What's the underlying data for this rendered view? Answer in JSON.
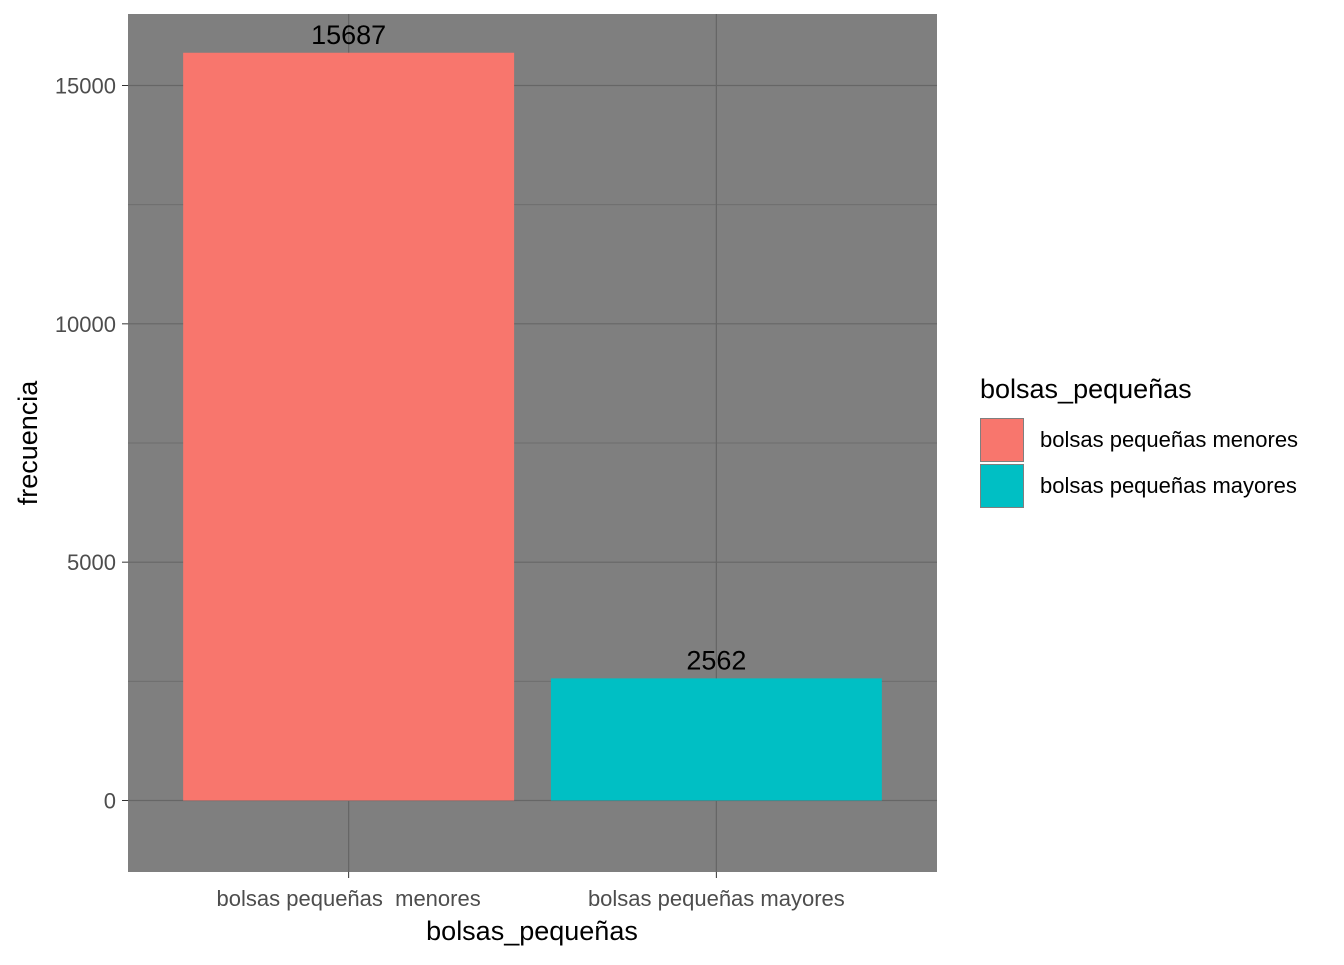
{
  "chart_data": {
    "type": "bar",
    "title": "",
    "xlabel": "bolsas_pequeñas",
    "ylabel": "frecuencia",
    "categories": [
      "bolsas pequeñas  menores",
      "bolsas pequeñas mayores"
    ],
    "values": [
      15687,
      2562
    ],
    "data_labels": [
      "15687",
      "2562"
    ],
    "colors": [
      "#F8766D",
      "#00BFC4"
    ],
    "ylim": [
      -1500,
      16500
    ],
    "yticks": [
      0,
      5000,
      10000,
      15000
    ],
    "ytick_labels": [
      "0",
      "5000",
      "10000",
      "15000"
    ],
    "grid": true,
    "panel_background": "#7f7f7f",
    "legend": {
      "title": "bolsas_pequeñas",
      "position": "right",
      "entries": [
        "bolsas pequeñas  menores",
        "bolsas pequeñas mayores"
      ]
    }
  }
}
